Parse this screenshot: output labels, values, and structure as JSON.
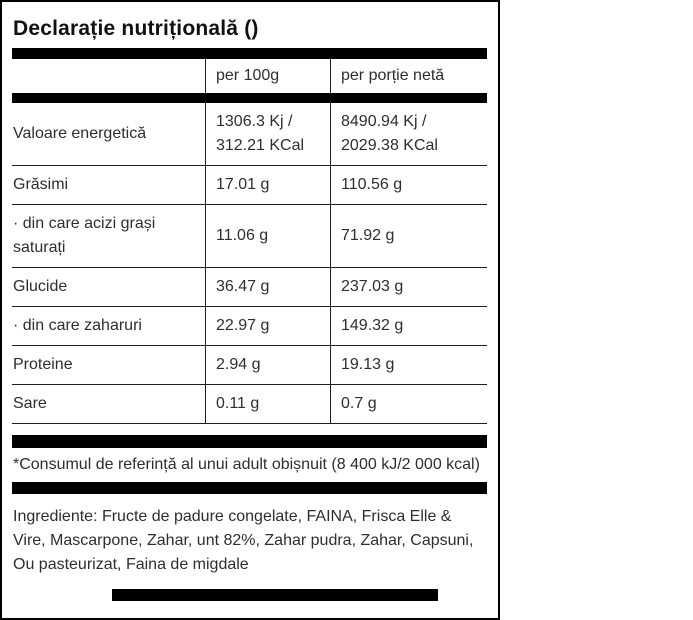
{
  "header": {
    "title": "Declarație nutrițională ()"
  },
  "table": {
    "columns": [
      "",
      "per 100g",
      "per porție netă"
    ],
    "rows": [
      {
        "label": "Valoare energetică",
        "per_100g": "1306.3 Kj /\n312.21 KCal",
        "per_portie_neta": "8490.94 Kj /\n2029.38 KCal"
      },
      {
        "label": "Grăsimi",
        "per_100g": "17.01 g",
        "per_portie_neta": "110.56 g"
      },
      {
        "label": "· din care acizi grași saturați",
        "per_100g": "11.06 g",
        "per_portie_neta": "71.92 g"
      },
      {
        "label": "Glucide",
        "per_100g": "36.47 g",
        "per_portie_neta": "237.03 g"
      },
      {
        "label": "· din care zaharuri",
        "per_100g": "22.97 g",
        "per_portie_neta": "149.32 g"
      },
      {
        "label": "Proteine",
        "per_100g": "2.94 g",
        "per_portie_neta": "19.13 g"
      },
      {
        "label": "Sare",
        "per_100g": "0.11 g",
        "per_portie_neta": "0.7 g"
      }
    ]
  },
  "footnote": "*Consumul de referință al unui adult obișnuit (8 400 kJ/2 000 kcal)",
  "ingredients": "Ingrediente: Fructe de padure congelate, FAINA, Frisca Elle & Vire, Mascarpone, Zahar, unt 82%, Zahar pudra, Zahar, Capsuni, Ou pasteurizat, Faina de migdale",
  "colors": {
    "bar": "#000000",
    "border": "#000000",
    "text": "#2e2e2e",
    "grid_line": "#1f1f1f"
  }
}
